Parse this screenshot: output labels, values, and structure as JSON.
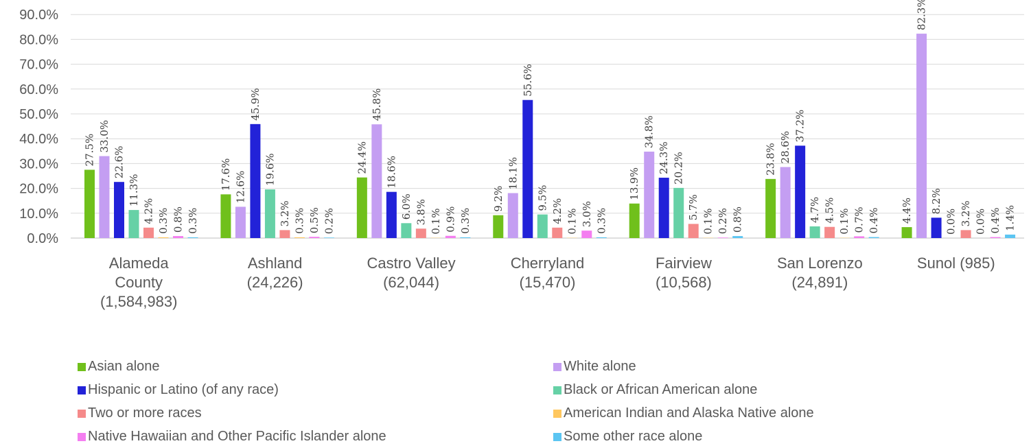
{
  "chart_data": {
    "type": "bar",
    "ylim": [
      0,
      90
    ],
    "yticks": [
      "0.0%",
      "10.0%",
      "20.0%",
      "30.0%",
      "40.0%",
      "50.0%",
      "60.0%",
      "70.0%",
      "80.0%",
      "90.0%"
    ],
    "grid": true,
    "legend_position": "bottom",
    "categories": [
      [
        "Alameda",
        "County",
        "(1,584,983)"
      ],
      [
        "Ashland",
        "(24,226)"
      ],
      [
        "Castro Valley",
        "(62,044)"
      ],
      [
        "Cherryland",
        "(15,470)"
      ],
      [
        "Fairview",
        "(10,568)"
      ],
      [
        "San Lorenzo",
        "(24,891)"
      ],
      [
        "Sunol (985)"
      ]
    ],
    "series": [
      {
        "name": "Asian alone",
        "color": "#70c01c",
        "values": [
          27.5,
          17.6,
          24.4,
          9.2,
          13.9,
          23.8,
          4.4
        ],
        "labels": [
          "27.5%",
          "17.6%",
          "24.4%",
          "9.2%",
          "13.9%",
          "23.8%",
          "4.4%"
        ]
      },
      {
        "name": "White alone",
        "color": "#c49ef2",
        "values": [
          33.0,
          12.6,
          45.8,
          18.1,
          34.8,
          28.6,
          82.3
        ],
        "labels": [
          "33.0%",
          "12.6%",
          "45.8%",
          "18.1%",
          "34.8%",
          "28.6%",
          "82.3%"
        ]
      },
      {
        "name": "Hispanic or Latino (of any race)",
        "color": "#2222d8",
        "values": [
          22.6,
          45.9,
          18.6,
          55.6,
          24.3,
          37.2,
          8.2
        ],
        "labels": [
          "22.6%",
          "45.9%",
          "18.6%",
          "55.6%",
          "24.3%",
          "37.2%",
          "8.2%"
        ]
      },
      {
        "name": "Black or African American alone",
        "color": "#66d1a6",
        "values": [
          11.3,
          19.6,
          6.0,
          9.5,
          20.2,
          4.7,
          0.0
        ],
        "labels": [
          "11.3%",
          "19.6%",
          "6.0%",
          "9.5%",
          "20.2%",
          "4.7%",
          "0.0%"
        ]
      },
      {
        "name": "Two or more races",
        "color": "#f58a8a",
        "values": [
          4.2,
          3.2,
          3.8,
          4.2,
          5.7,
          4.5,
          3.2
        ],
        "labels": [
          "4.2%",
          "3.2%",
          "3.8%",
          "4.2%",
          "5.7%",
          "4.5%",
          "3.2%"
        ]
      },
      {
        "name": "American Indian and Alaska Native alone",
        "color": "#ffc75e",
        "values": [
          0.3,
          0.3,
          0.1,
          0.1,
          0.1,
          0.1,
          0.0
        ],
        "labels": [
          "0.3%",
          "0.3%",
          "0.1%",
          "0.1%",
          "0.1%",
          "0.1%",
          "0.0%"
        ]
      },
      {
        "name": "Native Hawaiian and Other Pacific Islander alone",
        "color": "#f47ef0",
        "values": [
          0.8,
          0.5,
          0.9,
          3.0,
          0.2,
          0.7,
          0.4
        ],
        "labels": [
          "0.8%",
          "0.5%",
          "0.9%",
          "3.0%",
          "0.2%",
          "0.7%",
          "0.4%"
        ]
      },
      {
        "name": "Some other race alone",
        "color": "#5bc5f2",
        "values": [
          0.3,
          0.2,
          0.3,
          0.3,
          0.8,
          0.4,
          1.4
        ],
        "labels": [
          "0.3%",
          "0.2%",
          "0.3%",
          "0.3%",
          "0.8%",
          "0.4%",
          "1.4%"
        ]
      }
    ]
  }
}
